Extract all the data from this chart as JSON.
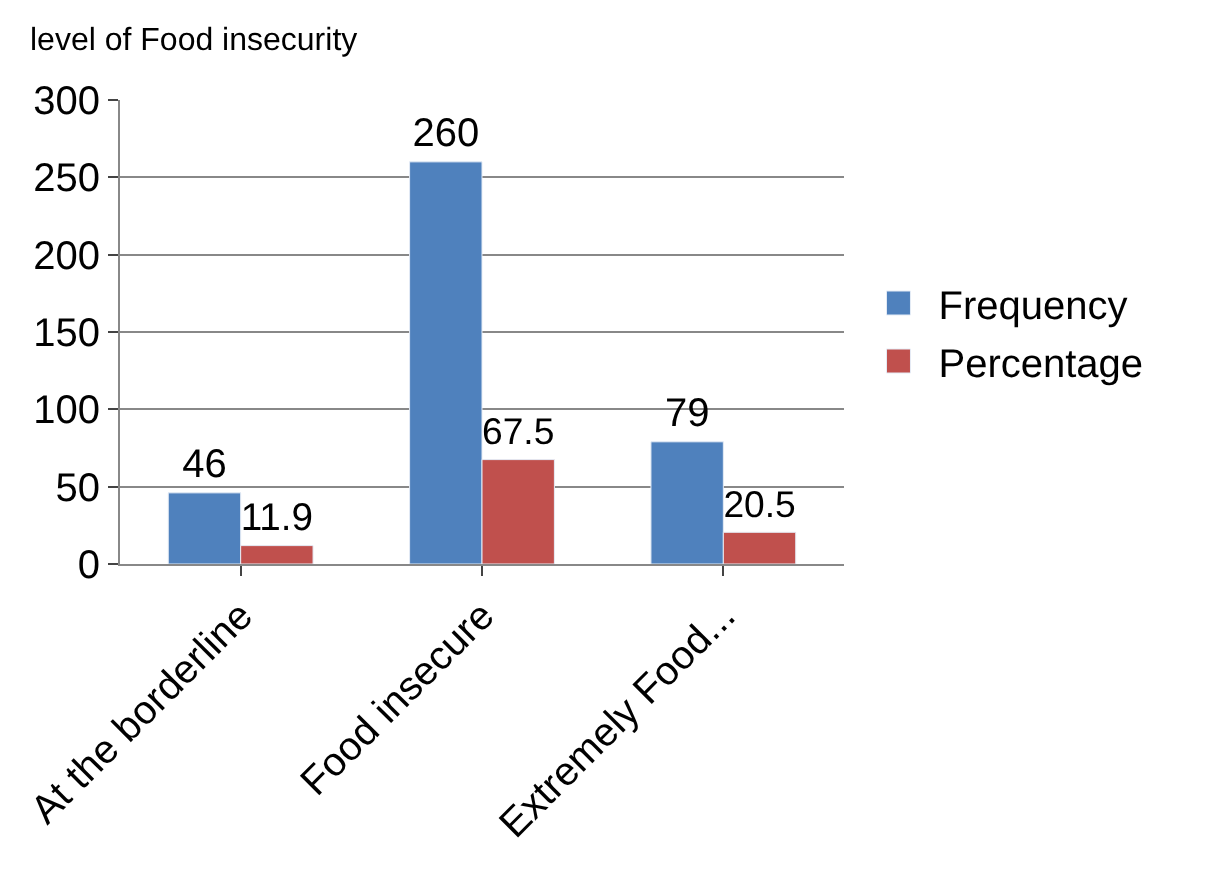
{
  "chart_data": {
    "type": "bar",
    "title": "level of Food insecurity",
    "categories": [
      "At the borderline",
      "Food insecure",
      "Extremely Food..."
    ],
    "series": [
      {
        "name": "Frequency",
        "color": "#4f81bd",
        "values": [
          46,
          260,
          79
        ]
      },
      {
        "name": "Percentage",
        "color": "#c0504d",
        "values": [
          11.9,
          67.5,
          20.5
        ]
      }
    ],
    "ylim": [
      0,
      300
    ],
    "yticks": [
      0,
      50,
      100,
      150,
      200,
      250,
      300
    ],
    "grid": "y",
    "legend": "right",
    "data_labels": true
  }
}
